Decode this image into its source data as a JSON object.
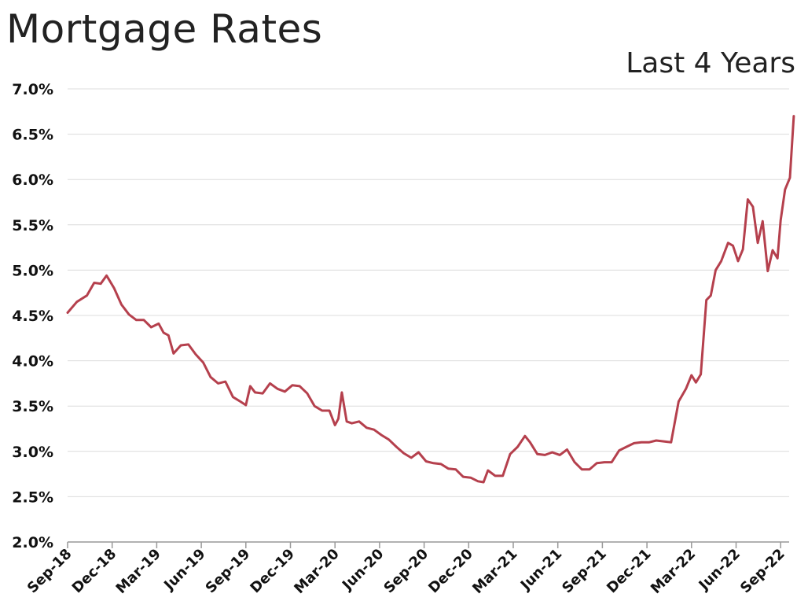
{
  "title": "Mortgage Rates",
  "subtitle": "Last 4 Years",
  "colors": {
    "line": "#b5404d",
    "grid": "#dcdcdc",
    "axis": "#999999",
    "text": "#222222"
  },
  "chart_data": {
    "type": "line",
    "title": "Mortgage Rates",
    "subtitle": "Last 4 Years",
    "xlabel": "",
    "ylabel": "",
    "ylim": [
      2.0,
      7.0
    ],
    "xlim": [
      "2018-09",
      "2022-10"
    ],
    "yticks": [
      "2.0%",
      "2.5%",
      "3.0%",
      "3.5%",
      "4.0%",
      "4.5%",
      "5.0%",
      "5.5%",
      "6.0%",
      "6.5%",
      "7.0%"
    ],
    "xticks": [
      "Sep-18",
      "Dec-18",
      "Mar-19",
      "Jun-19",
      "Sep-19",
      "Dec-19",
      "Mar-20",
      "Jun-20",
      "Sep-20",
      "Dec-20",
      "Mar-21",
      "Jun-21",
      "Sep-21",
      "Dec-21",
      "Mar-22",
      "Jun-22",
      "Sep-22"
    ],
    "grid": true,
    "legend": "none",
    "series": [
      {
        "x": [
          "2018-09-01",
          "2018-09-20",
          "2018-10-10",
          "2018-10-25",
          "2018-11-08",
          "2018-11-20",
          "2018-12-05",
          "2018-12-20",
          "2019-01-05",
          "2019-01-20",
          "2019-02-05",
          "2019-02-20",
          "2019-03-05",
          "2019-03-15",
          "2019-03-25",
          "2019-04-05",
          "2019-04-20",
          "2019-05-05",
          "2019-05-20",
          "2019-06-05",
          "2019-06-20",
          "2019-07-05",
          "2019-07-20",
          "2019-08-05",
          "2019-08-20",
          "2019-09-01",
          "2019-09-10",
          "2019-09-20",
          "2019-10-05",
          "2019-10-20",
          "2019-11-05",
          "2019-11-20",
          "2019-12-05",
          "2019-12-20",
          "2020-01-05",
          "2020-01-20",
          "2020-02-05",
          "2020-02-20",
          "2020-03-01",
          "2020-03-08",
          "2020-03-15",
          "2020-03-25",
          "2020-04-05",
          "2020-04-20",
          "2020-05-05",
          "2020-05-20",
          "2020-06-05",
          "2020-06-20",
          "2020-07-05",
          "2020-07-20",
          "2020-08-05",
          "2020-08-20",
          "2020-09-05",
          "2020-09-20",
          "2020-10-05",
          "2020-10-20",
          "2020-11-05",
          "2020-11-20",
          "2020-12-05",
          "2020-12-20",
          "2021-01-01",
          "2021-01-10",
          "2021-01-25",
          "2021-02-10",
          "2021-02-25",
          "2021-03-10",
          "2021-03-25",
          "2021-04-05",
          "2021-04-20",
          "2021-05-05",
          "2021-05-20",
          "2021-06-05",
          "2021-06-20",
          "2021-07-05",
          "2021-07-20",
          "2021-08-05",
          "2021-08-20",
          "2021-09-05",
          "2021-09-20",
          "2021-10-05",
          "2021-10-20",
          "2021-11-05",
          "2021-11-20",
          "2021-12-05",
          "2021-12-20",
          "2022-01-05",
          "2022-01-20",
          "2022-02-05",
          "2022-02-20",
          "2022-03-01",
          "2022-03-10",
          "2022-03-20",
          "2022-04-01",
          "2022-04-10",
          "2022-04-20",
          "2022-05-01",
          "2022-05-15",
          "2022-05-25",
          "2022-06-05",
          "2022-06-15",
          "2022-06-25",
          "2022-07-05",
          "2022-07-15",
          "2022-07-25",
          "2022-08-05",
          "2022-08-15",
          "2022-08-25",
          "2022-09-01",
          "2022-09-10",
          "2022-09-20",
          "2022-09-28"
        ],
        "values": [
          4.53,
          4.65,
          4.72,
          4.86,
          4.85,
          4.94,
          4.8,
          4.62,
          4.51,
          4.45,
          4.45,
          4.37,
          4.41,
          4.31,
          4.28,
          4.08,
          4.17,
          4.18,
          4.07,
          3.98,
          3.82,
          3.75,
          3.77,
          3.6,
          3.55,
          3.51,
          3.72,
          3.65,
          3.64,
          3.75,
          3.69,
          3.66,
          3.73,
          3.72,
          3.64,
          3.5,
          3.45,
          3.45,
          3.29,
          3.36,
          3.65,
          3.33,
          3.31,
          3.33,
          3.26,
          3.24,
          3.18,
          3.13,
          3.05,
          2.98,
          2.93,
          2.99,
          2.89,
          2.87,
          2.86,
          2.81,
          2.8,
          2.72,
          2.71,
          2.67,
          2.66,
          2.79,
          2.73,
          2.73,
          2.97,
          3.05,
          3.17,
          3.1,
          2.97,
          2.96,
          2.99,
          2.96,
          3.02,
          2.88,
          2.8,
          2.8,
          2.87,
          2.88,
          2.88,
          3.01,
          3.05,
          3.09,
          3.1,
          3.1,
          3.12,
          3.11,
          3.1,
          3.55,
          3.69,
          3.84,
          3.76,
          3.85,
          4.67,
          4.72,
          5.0,
          5.1,
          5.3,
          5.27,
          5.1,
          5.23,
          5.78,
          5.7,
          5.3,
          5.54,
          4.99,
          5.22,
          5.13,
          5.55,
          5.89,
          6.02,
          6.7
        ]
      }
    ]
  }
}
